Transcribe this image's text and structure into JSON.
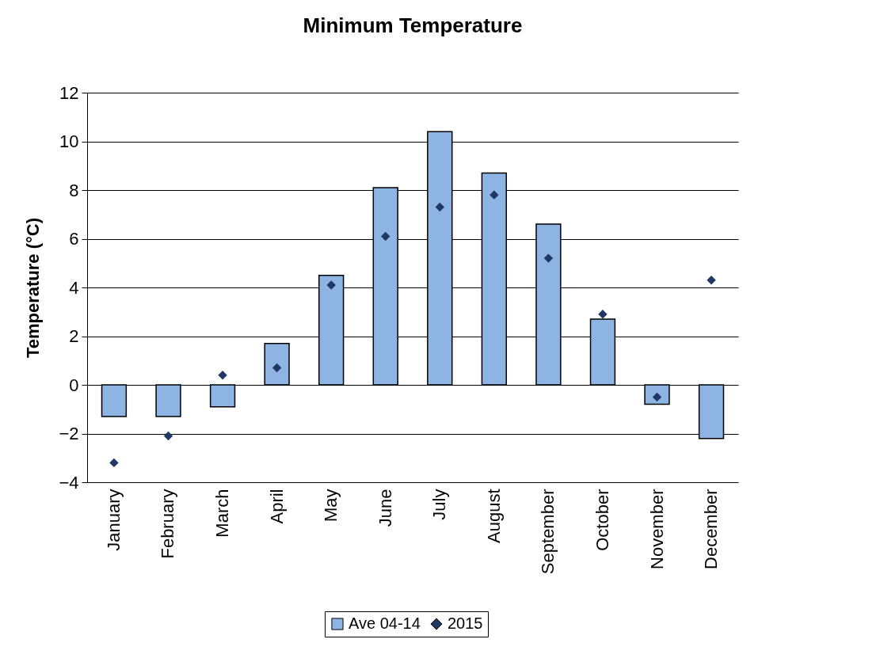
{
  "chart_data": {
    "type": "bar",
    "title": "Minimum Temperature",
    "ylabel": "Temperature (°C)",
    "categories": [
      "January",
      "February",
      "March",
      "April",
      "May",
      "June",
      "July",
      "August",
      "September",
      "October",
      "November",
      "December"
    ],
    "series": [
      {
        "name": "Ave 04-14",
        "type": "bar",
        "color": "#8db4e2",
        "values": [
          -1.3,
          -1.3,
          -0.9,
          1.7,
          4.5,
          8.1,
          10.4,
          8.7,
          6.6,
          2.7,
          -0.8,
          -2.2
        ]
      },
      {
        "name": "2015",
        "type": "scatter",
        "marker": "diamond",
        "color": "#1f3864",
        "values": [
          -3.2,
          -2.1,
          0.4,
          0.7,
          4.1,
          6.1,
          7.3,
          7.8,
          5.2,
          2.9,
          -0.5,
          4.3
        ]
      }
    ],
    "ylim": [
      -4,
      12
    ],
    "yticks": [
      -4,
      -2,
      0,
      2,
      4,
      6,
      8,
      10,
      12
    ],
    "grid": "y",
    "legend": "bottom"
  }
}
